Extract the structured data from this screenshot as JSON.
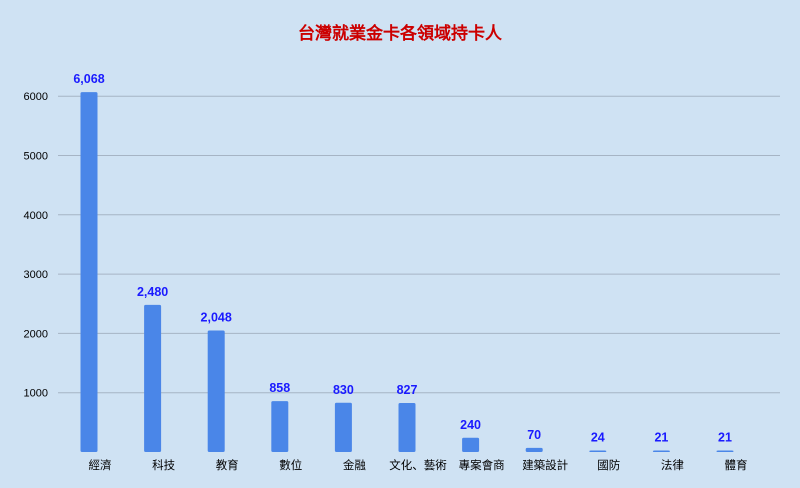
{
  "chart_data": {
    "type": "bar",
    "title": "台灣就業金卡各領域持卡人",
    "xlabel": "",
    "ylabel": "",
    "categories": [
      "經濟",
      "科技",
      "教育",
      "數位",
      "金融",
      "文化、藝術",
      "專案會商",
      "建築設計",
      "國防",
      "法律",
      "體育"
    ],
    "values": [
      6068,
      2480,
      2048,
      858,
      830,
      827,
      240,
      70,
      24,
      21,
      21
    ],
    "value_labels": [
      "6,068",
      "2,480",
      "2,048",
      "858",
      "830",
      "827",
      "240",
      "70",
      "24",
      "21",
      "21"
    ],
    "yticks": [
      "1000",
      "2000",
      "3000",
      "4000",
      "5000",
      "6000"
    ],
    "ylim": [
      0,
      6500
    ],
    "grid": true,
    "legend": "none",
    "colors": {
      "background": "#cfe2f3",
      "bar": "#4a86e8",
      "title": "#cc0000",
      "value_label": "#1a1aff",
      "gridline": "#a6b4c4",
      "axis_text": "#000000"
    }
  }
}
